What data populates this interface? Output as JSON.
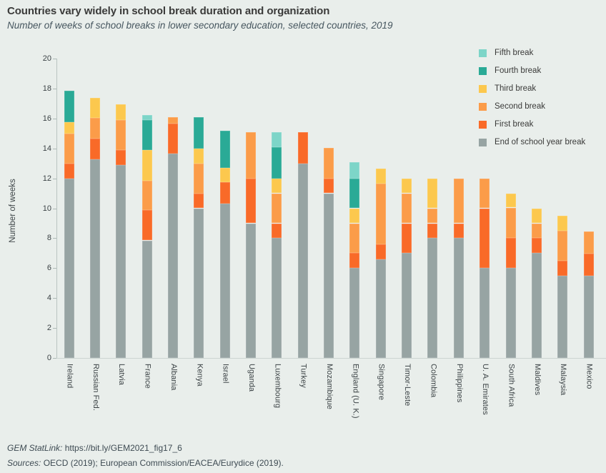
{
  "header": {
    "title": "Countries vary widely in school break duration and organization",
    "subtitle": "Number of weeks of school breaks in lower secondary education, selected countries, 2019"
  },
  "chart_data": {
    "type": "bar",
    "stacked": true,
    "title": "Countries vary widely in school break duration and organization",
    "subtitle": "Number of weeks of school breaks in lower secondary education, selected countries, 2019",
    "xlabel": "",
    "ylabel": "Number of weeks",
    "ylim": [
      0,
      20
    ],
    "ytick_step": 2,
    "grid": false,
    "legend_position": "top-right",
    "categories": [
      "Ireland",
      "Russian Fed.",
      "Latvia",
      "France",
      "Albania",
      "Kenya",
      "Israel",
      "Uganda",
      "Luxembourg",
      "Turkey",
      "Mozambique",
      "England (U. K.)",
      "Singapore",
      "Timor-Leste",
      "Colombia",
      "Philippines",
      "U. A. Emirates",
      "South Africa",
      "Maldives",
      "Malaysia",
      "Mexico"
    ],
    "series": [
      {
        "name": "End of school year break",
        "color": "#97a4a3",
        "values": [
          12,
          13.25,
          12.9,
          7.85,
          13.65,
          10,
          10.3,
          9,
          8,
          13,
          11,
          6,
          6.6,
          7,
          8,
          8,
          6,
          6,
          7,
          5.5,
          5.5
        ]
      },
      {
        "name": "First break",
        "color": "#f96a28",
        "values": [
          1,
          1.4,
          1,
          2.05,
          2,
          1,
          1.45,
          3,
          1,
          2.1,
          1,
          1,
          1,
          2,
          1,
          1,
          4,
          2,
          1,
          1,
          1.45
        ]
      },
      {
        "name": "Second break",
        "color": "#fb9c49",
        "values": [
          2,
          1.4,
          2,
          1.95,
          0.45,
          2,
          0,
          3.1,
          2,
          0,
          2.05,
          2,
          4.05,
          2,
          1,
          3,
          2,
          2.05,
          1,
          2,
          1.5
        ]
      },
      {
        "name": "Third break",
        "color": "#fcc84e",
        "values": [
          0.75,
          1.35,
          1.05,
          2.05,
          0,
          1,
          0.95,
          0,
          1,
          0,
          0,
          1,
          1,
          1,
          2,
          0,
          0,
          0.95,
          1,
          1,
          0
        ]
      },
      {
        "name": "Fourth break",
        "color": "#2aaa96",
        "values": [
          2.1,
          0,
          0,
          2,
          0,
          2.1,
          2.5,
          0,
          2.1,
          0,
          0,
          2,
          0,
          0,
          0,
          0,
          0,
          0,
          0,
          0,
          0
        ]
      },
      {
        "name": "Fifth break",
        "color": "#7dd5c8",
        "values": [
          0,
          0,
          0,
          0.35,
          0,
          0,
          0,
          0,
          1,
          0,
          0,
          1.1,
          0,
          0,
          0,
          0,
          0,
          0,
          0,
          0,
          0
        ]
      }
    ],
    "totals": [
      17.85,
      17.4,
      16.95,
      16.25,
      16.1,
      16.1,
      15.2,
      15.1,
      15.1,
      15.1,
      14.05,
      13.1,
      12.65,
      12,
      12,
      12,
      12,
      11,
      10,
      9.5,
      8.45
    ],
    "legend_order": [
      "Fifth break",
      "Fourth break",
      "Third break",
      "Second break",
      "First break",
      "End of school year break"
    ]
  },
  "footer": {
    "statlink_label": "GEM StatLink:",
    "statlink_url": "https://bit.ly/GEM2021_fig17_6",
    "sources_label": "Sources:",
    "sources_text": "OECD (2019); European Commission/EACEA/Eurydice (2019)."
  }
}
